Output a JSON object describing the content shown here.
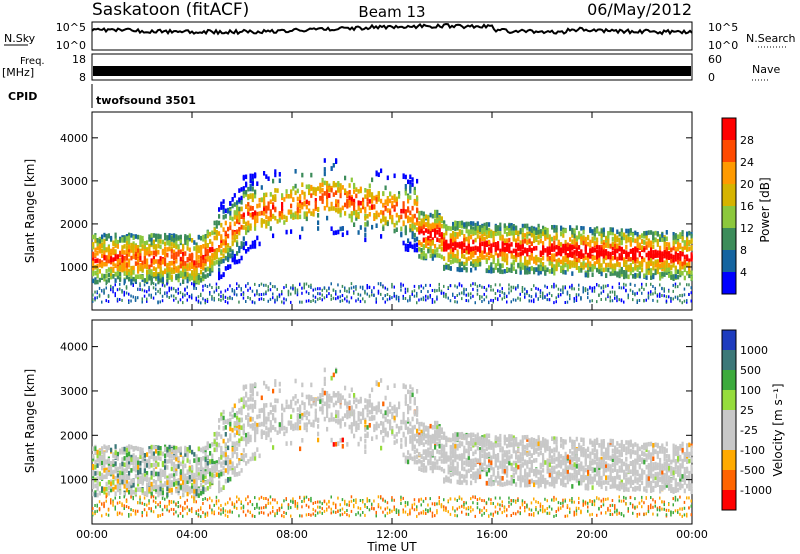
{
  "header": {
    "station": "Saskatoon (fitACF)",
    "beam": "Beam 13",
    "date": "06/May/2012"
  },
  "strips": {
    "nsky_label": "N.Sky",
    "nsearch_label": "N.Search",
    "nsky_ticks": [
      "10^5",
      "10^0"
    ],
    "nsearch_ticks": [
      "10^5",
      "10^0"
    ],
    "freq_label_1": "Freq.",
    "freq_label_2": "[MHz]",
    "freq_ticks": [
      "18",
      "8"
    ],
    "nave_label": "Nave",
    "nave_ticks": [
      "60",
      "0"
    ],
    "cpid_label": "CPID",
    "cpid_value": "twofsound 3501"
  },
  "chart_data": [
    {
      "type": "heatmap",
      "name": "power",
      "ylabel": "Slant Range [km]",
      "yticks": [
        1000,
        2000,
        3000,
        4000
      ],
      "ylim": [
        0,
        4600
      ],
      "xlim": [
        0,
        24
      ],
      "colorbar": {
        "label": "Power [dB]",
        "ticks": [
          "28",
          "24",
          "20",
          "16",
          "12",
          "8",
          "4"
        ],
        "colors": [
          "#ff0000",
          "#ff4a00",
          "#ff9a00",
          "#d6b400",
          "#8cc83c",
          "#3c8c5a",
          "#1464a0",
          "#0000ff"
        ]
      }
    },
    {
      "type": "heatmap",
      "name": "velocity",
      "ylabel": "Slant Range [km]",
      "yticks": [
        1000,
        2000,
        3000,
        4000
      ],
      "ylim": [
        0,
        4600
      ],
      "xlim": [
        0,
        24
      ],
      "colorbar": {
        "label": "Velocity [m s⁻¹]",
        "ticks": [
          "1000",
          "500",
          "100",
          "25",
          "-25",
          "-100",
          "-500",
          "-1000"
        ],
        "colors": [
          "#1e3cbe",
          "#3c7878",
          "#3caa3c",
          "#96dc3c",
          "#c8c8c8",
          "#c8c8c8",
          "#ffaa00",
          "#ff6400",
          "#ff0000"
        ]
      }
    }
  ],
  "xaxis": {
    "ticks": [
      "00:00",
      "04:00",
      "08:00",
      "12:00",
      "16:00",
      "20:00",
      "00:00"
    ],
    "label": "Time UT"
  }
}
